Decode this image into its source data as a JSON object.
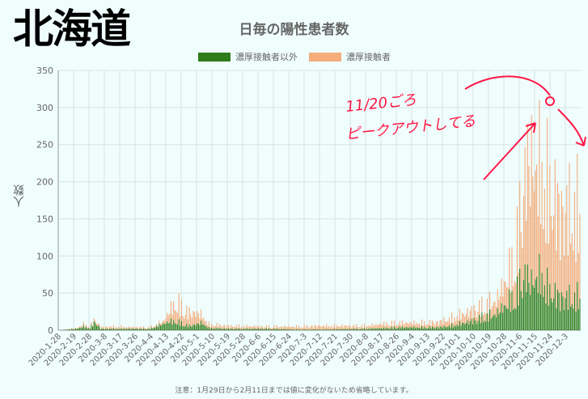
{
  "big_title": "北海道",
  "chart_data": {
    "type": "bar",
    "title": "日毎の陽性患者数",
    "xlabel": "",
    "ylabel": "人数",
    "ylim": [
      0,
      350
    ],
    "yticks": [
      0,
      50,
      100,
      150,
      200,
      250,
      300,
      350
    ],
    "start_date": "2020-1-28",
    "x_tick_labels": [
      "2020-1-28",
      "2020-2-19",
      "2020-2-28",
      "2020-3-8",
      "2020-3-17",
      "2020-3-26",
      "2020-4-4",
      "2020-4-13",
      "2020-4-22",
      "2020-5-1",
      "2020-5-10",
      "2020-5-19",
      "2020-5-28",
      "2020-6-6",
      "2020-6-15",
      "2020-6-24",
      "2020-7-3",
      "2020-7-12",
      "2020-7-21",
      "2020-7-30",
      "2020-8-8",
      "2020-8-17",
      "2020-8-26",
      "2020-9-4",
      "2020-9-13",
      "2020-9-22",
      "2020-10-1",
      "2020-10-10",
      "2020-10-19",
      "2020-10-28",
      "2020-11-6",
      "2020-11-15",
      "2020-11-24",
      "2020-12-3"
    ],
    "stacked": true,
    "grid": true,
    "legend_position": "top",
    "series": [
      {
        "name": "濃厚接触者以外",
        "color": "#2e7d1a",
        "segments": [
          [
            0,
            0
          ],
          [
            14,
            2
          ],
          [
            19,
            5
          ],
          [
            24,
            3
          ],
          [
            28,
            12
          ],
          [
            32,
            2
          ],
          [
            40,
            2
          ],
          [
            60,
            2
          ],
          [
            70,
            2
          ],
          [
            85,
            12
          ],
          [
            90,
            12
          ],
          [
            100,
            6
          ],
          [
            110,
            10
          ],
          [
            115,
            3
          ],
          [
            130,
            2
          ],
          [
            160,
            2
          ],
          [
            180,
            1
          ],
          [
            200,
            1
          ],
          [
            235,
            2
          ],
          [
            250,
            3
          ],
          [
            260,
            4
          ],
          [
            275,
            4
          ],
          [
            290,
            4
          ],
          [
            300,
            6
          ],
          [
            315,
            12
          ],
          [
            325,
            18
          ],
          [
            335,
            22
          ],
          [
            345,
            40
          ],
          [
            350,
            48
          ],
          [
            352,
            60
          ],
          [
            355,
            70
          ],
          [
            358,
            80
          ],
          [
            360,
            65
          ],
          [
            365,
            70
          ],
          [
            370,
            75
          ],
          [
            375,
            55
          ],
          [
            385,
            45
          ],
          [
            395,
            45
          ]
        ]
      },
      {
        "name": "濃厚接触者",
        "color": "#f4ad7b",
        "segments": [
          [
            0,
            0
          ],
          [
            14,
            1
          ],
          [
            19,
            3
          ],
          [
            24,
            2
          ],
          [
            28,
            4
          ],
          [
            32,
            2
          ],
          [
            40,
            3
          ],
          [
            60,
            2
          ],
          [
            70,
            2
          ],
          [
            80,
            3
          ],
          [
            85,
            15
          ],
          [
            88,
            22
          ],
          [
            92,
            25
          ],
          [
            96,
            20
          ],
          [
            100,
            18
          ],
          [
            105,
            16
          ],
          [
            110,
            10
          ],
          [
            115,
            5
          ],
          [
            130,
            4
          ],
          [
            160,
            3
          ],
          [
            180,
            4
          ],
          [
            200,
            5
          ],
          [
            235,
            4
          ],
          [
            250,
            6
          ],
          [
            260,
            6
          ],
          [
            275,
            6
          ],
          [
            290,
            7
          ],
          [
            300,
            10
          ],
          [
            315,
            14
          ],
          [
            325,
            16
          ],
          [
            335,
            18
          ],
          [
            345,
            40
          ],
          [
            350,
            60
          ],
          [
            352,
            80
          ],
          [
            355,
            110
          ],
          [
            358,
            150
          ],
          [
            360,
            160
          ],
          [
            362,
            170
          ],
          [
            365,
            150
          ],
          [
            370,
            145
          ],
          [
            375,
            140
          ],
          [
            385,
            120
          ],
          [
            395,
            120
          ]
        ]
      }
    ],
    "note": "注意：1月29日から2月11日までは値に変化がないため省略しています。"
  },
  "annotation": {
    "line1": "11/20ごろ",
    "line2": "ピークアウトしてる"
  }
}
